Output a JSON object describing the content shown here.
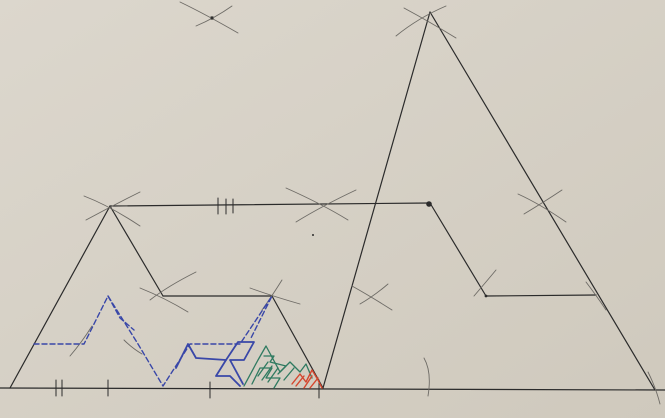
{
  "photo": {
    "subject": "hand-drawn-geometric-construction",
    "paper_color": "#dcd7cd",
    "paper_shadow_color": "#cfc9bd",
    "pencil_color": "#2b2b2b",
    "compass_mark_color": "#6e6b66",
    "blue_ink_color": "#3947a8",
    "green_ink_color": "#2f7a60",
    "red_ink_color": "#d4472f"
  }
}
